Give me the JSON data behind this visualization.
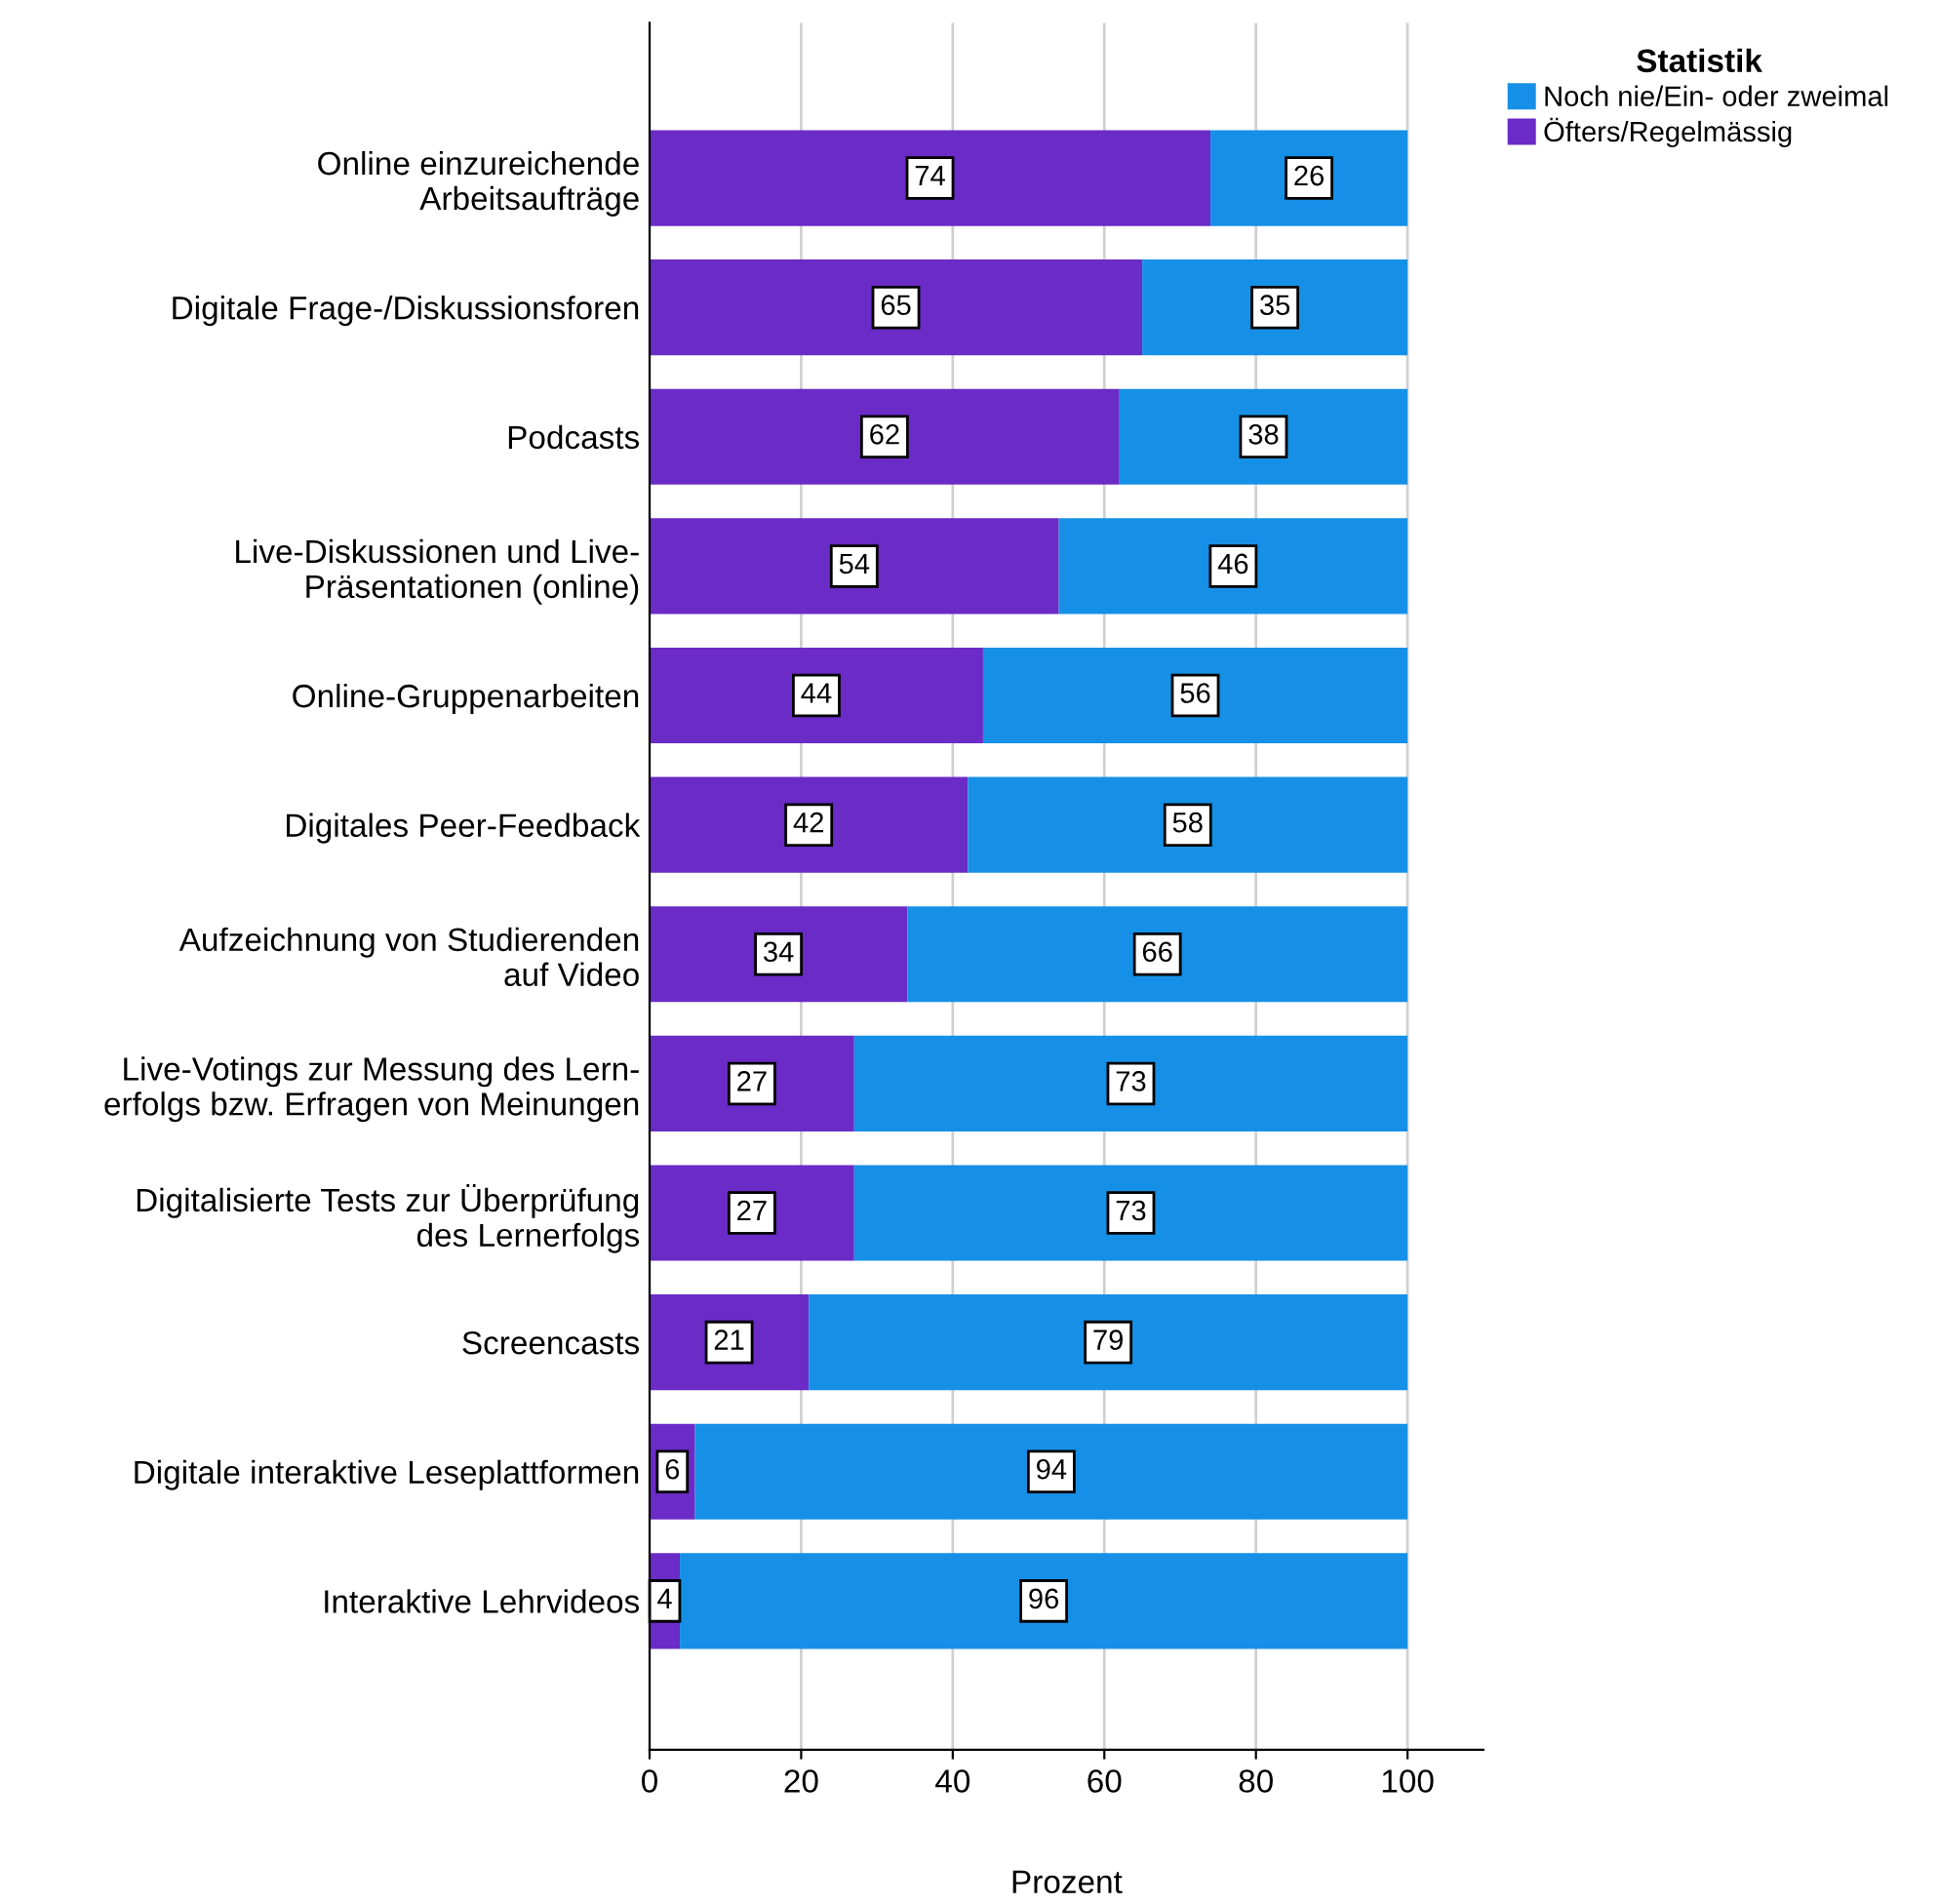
{
  "chart_data": {
    "type": "bar",
    "orientation": "horizontal",
    "stacked": true,
    "categories": [
      "Online einzureichende\nArbeitsaufträge",
      "Digitale Frage-/Diskussionsforen",
      "Podcasts",
      "Live-Diskussionen und Live-\nPräsentationen (online)",
      "Online-Gruppenarbeiten",
      "Digitales Peer-Feedback",
      "Aufzeichnung von Studierenden\nauf Video",
      "Live-Votings zur Messung des Lern-\nerfolgs bzw. Erfragen von Meinungen",
      "Digitalisierte Tests zur Überprüfung\ndes Lernerfolgs",
      "Screencasts",
      "Digitale interaktive Leseplattformen",
      "Interaktive Lehrvideos"
    ],
    "series": [
      {
        "name": "Öfters/Regelmässig",
        "color": "#6a2bc6",
        "values": [
          74,
          65,
          62,
          54,
          44,
          42,
          34,
          27,
          27,
          21,
          6,
          4
        ]
      },
      {
        "name": "Noch nie/Ein- oder zweimal",
        "color": "#1690e6",
        "values": [
          26,
          35,
          38,
          46,
          56,
          58,
          66,
          73,
          73,
          79,
          94,
          96
        ]
      }
    ],
    "xlim": [
      0,
      110
    ],
    "xticks": [
      0,
      20,
      40,
      60,
      80,
      100
    ],
    "xlabel": "Prozent",
    "legend_title": "Statistik",
    "legend": "top right",
    "grid": "x",
    "data_labels": true
  }
}
